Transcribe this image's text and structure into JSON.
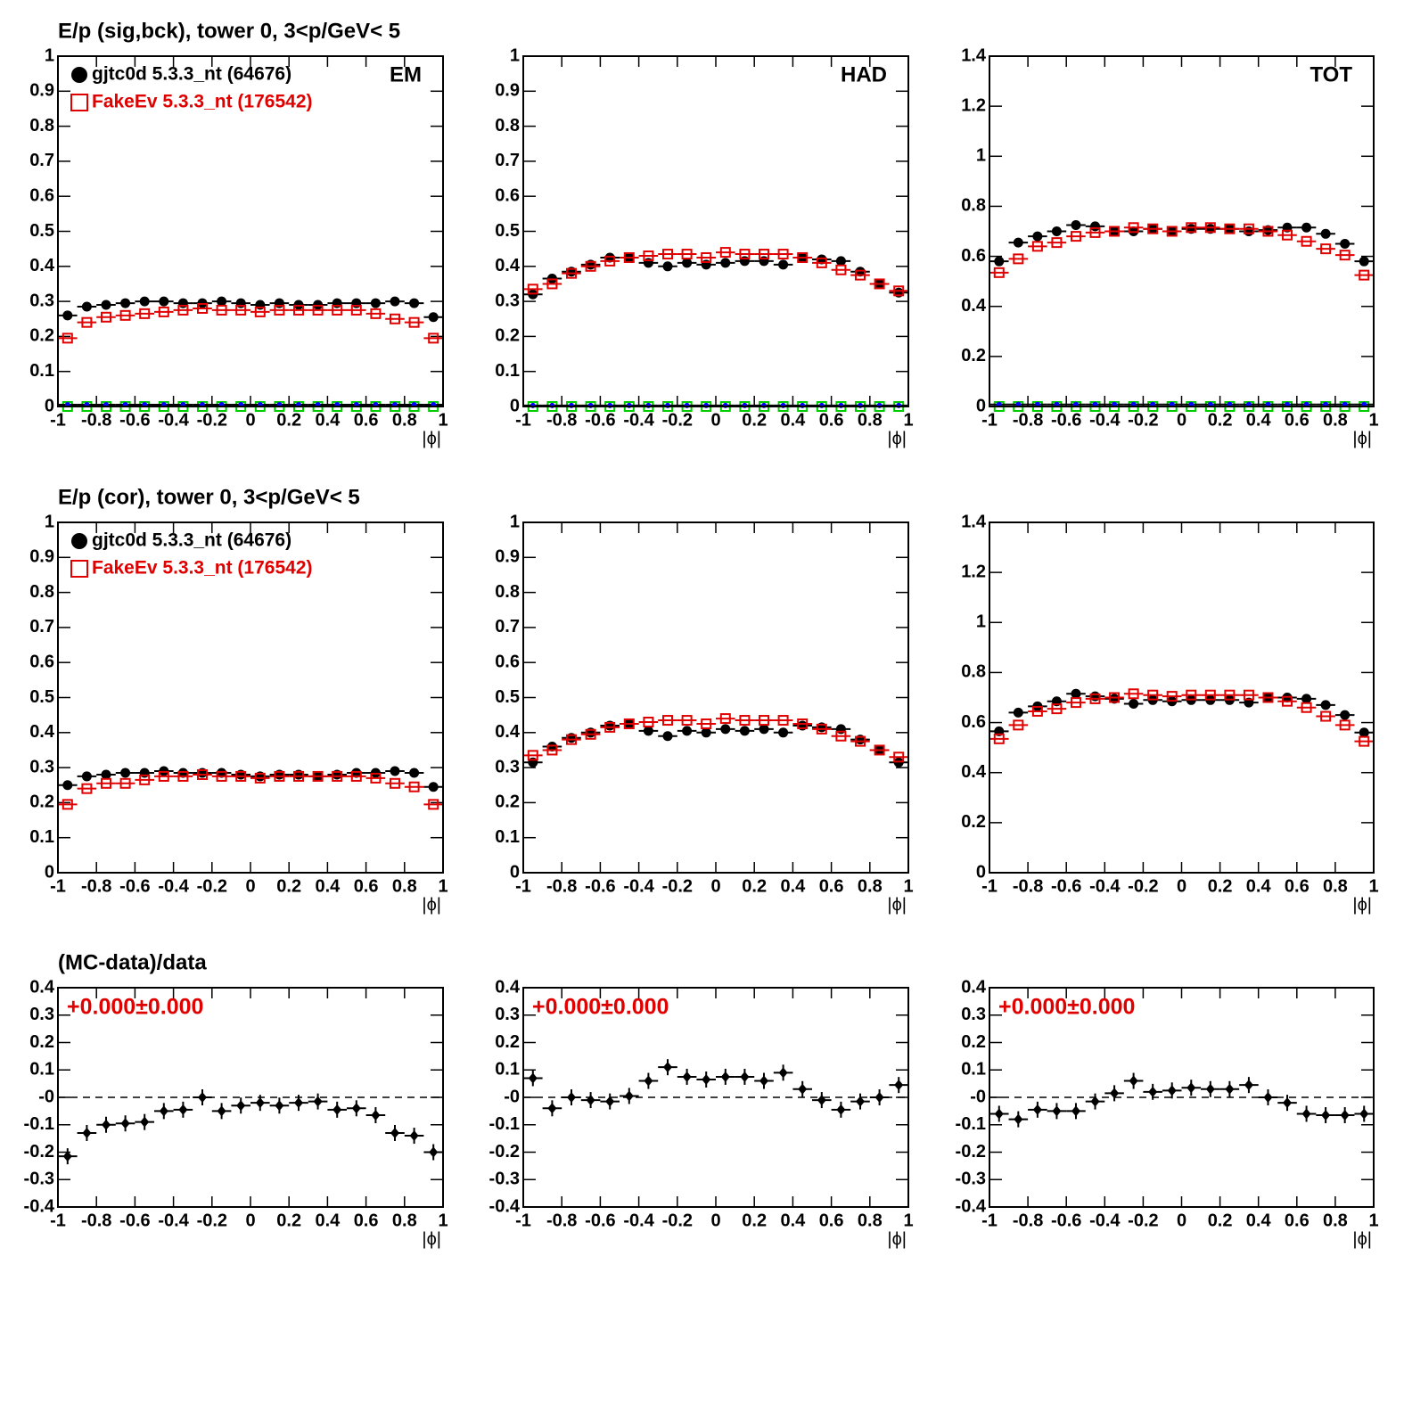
{
  "chart_data": [
    {
      "type": "scatter",
      "title": "E/p (sig,bck), tower 0,  3<p/GeV< 5",
      "label": "EM",
      "legend": "top-left",
      "xlabel": "|ϕ|",
      "x": [
        -0.95,
        -0.85,
        -0.75,
        -0.65,
        -0.55,
        -0.45,
        -0.35,
        -0.25,
        -0.15,
        -0.05,
        0.05,
        0.15,
        0.25,
        0.35,
        0.45,
        0.55,
        0.65,
        0.75,
        0.85,
        0.95
      ],
      "series": [
        {
          "name": "gjtc0d 5.3.3_nt (64676)",
          "color": "#000000",
          "marker": "circle",
          "values": [
            0.26,
            0.285,
            0.29,
            0.295,
            0.3,
            0.3,
            0.295,
            0.295,
            0.3,
            0.295,
            0.29,
            0.295,
            0.29,
            0.29,
            0.295,
            0.295,
            0.295,
            0.3,
            0.295,
            0.255
          ]
        },
        {
          "name": "FakeEv 5.3.3_nt (176542)",
          "color": "#e00000",
          "marker": "square-open",
          "values": [
            0.195,
            0.24,
            0.255,
            0.26,
            0.265,
            0.27,
            0.275,
            0.28,
            0.275,
            0.275,
            0.27,
            0.275,
            0.275,
            0.275,
            0.275,
            0.275,
            0.265,
            0.25,
            0.24,
            0.195
          ]
        },
        {
          "color": "#00cc00",
          "marker": "square-open",
          "values": [
            0,
            0,
            0,
            0,
            0,
            0,
            0,
            0,
            0,
            0,
            0,
            0,
            0,
            0,
            0,
            0,
            0,
            0,
            0,
            0
          ]
        },
        {
          "color": "#0000ff",
          "marker": "dot",
          "values": [
            0.005,
            0.005,
            0.005,
            0.005,
            0.005,
            0.005,
            0.005,
            0.005,
            0.005,
            0.005,
            0.005,
            0.005,
            0.005,
            0.005,
            0.005,
            0.005,
            0.005,
            0.005,
            0.005,
            0.005
          ]
        }
      ],
      "xlim": [
        -1,
        1
      ],
      "xticks": [
        -1,
        -0.8,
        -0.6,
        -0.4,
        -0.2,
        0,
        0.2,
        0.4,
        0.6,
        0.8,
        1
      ],
      "ylim": [
        0,
        1
      ],
      "yticks": [
        0,
        0.1,
        0.2,
        0.3,
        0.4,
        0.5,
        0.6,
        0.7,
        0.8,
        0.9,
        1
      ]
    },
    {
      "type": "scatter",
      "label": "HAD",
      "xlabel": "|ϕ|",
      "x": [
        -0.95,
        -0.85,
        -0.75,
        -0.65,
        -0.55,
        -0.45,
        -0.35,
        -0.25,
        -0.15,
        -0.05,
        0.05,
        0.15,
        0.25,
        0.35,
        0.45,
        0.55,
        0.65,
        0.75,
        0.85,
        0.95
      ],
      "series": [
        {
          "color": "#000000",
          "marker": "circle",
          "values": [
            0.32,
            0.365,
            0.385,
            0.405,
            0.425,
            0.425,
            0.41,
            0.4,
            0.41,
            0.405,
            0.41,
            0.415,
            0.415,
            0.405,
            0.425,
            0.42,
            0.415,
            0.385,
            0.35,
            0.325
          ]
        },
        {
          "color": "#e00000",
          "marker": "square-open",
          "values": [
            0.335,
            0.35,
            0.38,
            0.4,
            0.415,
            0.425,
            0.43,
            0.435,
            0.435,
            0.425,
            0.44,
            0.435,
            0.435,
            0.435,
            0.425,
            0.41,
            0.39,
            0.375,
            0.35,
            0.33
          ]
        },
        {
          "color": "#00cc00",
          "marker": "square-open",
          "values": [
            0,
            0,
            0,
            0,
            0,
            0,
            0,
            0,
            0,
            0,
            0,
            0,
            0,
            0,
            0,
            0,
            0,
            0,
            0,
            0
          ]
        },
        {
          "color": "#0000ff",
          "marker": "dot",
          "values": [
            0.003,
            0.003,
            0.003,
            0.003,
            0.003,
            0.003,
            0.003,
            0.003,
            0.003,
            0.003,
            0.003,
            0.003,
            0.003,
            0.003,
            0.003,
            0.003,
            0.003,
            0.003,
            0.003,
            0.003
          ]
        }
      ],
      "xlim": [
        -1,
        1
      ],
      "xticks": [
        -1,
        -0.8,
        -0.6,
        -0.4,
        -0.2,
        0,
        0.2,
        0.4,
        0.6,
        0.8,
        1
      ],
      "ylim": [
        0,
        1
      ],
      "yticks": [
        0,
        0.1,
        0.2,
        0.3,
        0.4,
        0.5,
        0.6,
        0.7,
        0.8,
        0.9,
        1
      ]
    },
    {
      "type": "scatter",
      "label": "TOT",
      "xlabel": "|ϕ|",
      "x": [
        -0.95,
        -0.85,
        -0.75,
        -0.65,
        -0.55,
        -0.45,
        -0.35,
        -0.25,
        -0.15,
        -0.05,
        0.05,
        0.15,
        0.25,
        0.35,
        0.45,
        0.55,
        0.65,
        0.75,
        0.85,
        0.95
      ],
      "series": [
        {
          "color": "#000000",
          "marker": "circle",
          "values": [
            0.58,
            0.655,
            0.68,
            0.7,
            0.725,
            0.72,
            0.7,
            0.7,
            0.71,
            0.7,
            0.71,
            0.71,
            0.71,
            0.7,
            0.705,
            0.715,
            0.715,
            0.69,
            0.65,
            0.58
          ]
        },
        {
          "color": "#e00000",
          "marker": "square-open",
          "values": [
            0.535,
            0.59,
            0.64,
            0.655,
            0.68,
            0.695,
            0.7,
            0.715,
            0.71,
            0.7,
            0.715,
            0.715,
            0.71,
            0.71,
            0.7,
            0.685,
            0.66,
            0.63,
            0.605,
            0.525
          ]
        },
        {
          "color": "#00cc00",
          "marker": "square-open",
          "values": [
            0,
            0,
            0,
            0,
            0,
            0,
            0,
            0,
            0,
            0,
            0,
            0,
            0,
            0,
            0,
            0,
            0,
            0,
            0,
            0
          ]
        },
        {
          "color": "#0000ff",
          "marker": "dot",
          "values": [
            0.008,
            0.008,
            0.008,
            0.008,
            0.008,
            0.008,
            0.008,
            0.008,
            0.008,
            0.008,
            0.008,
            0.008,
            0.008,
            0.008,
            0.008,
            0.008,
            0.008,
            0.008,
            0.008,
            0.008
          ]
        }
      ],
      "xlim": [
        -1,
        1
      ],
      "xticks": [
        -1,
        -0.8,
        -0.6,
        -0.4,
        -0.2,
        0,
        0.2,
        0.4,
        0.6,
        0.8,
        1
      ],
      "ylim": [
        0,
        1.4
      ],
      "yticks": [
        0,
        0.2,
        0.4,
        0.6,
        0.8,
        1,
        1.2,
        1.4
      ]
    },
    {
      "type": "scatter",
      "title": "E/p (cor), tower 0,  3<p/GeV< 5",
      "legend": "top-left",
      "xlabel": "|ϕ|",
      "x": [
        -0.95,
        -0.85,
        -0.75,
        -0.65,
        -0.55,
        -0.45,
        -0.35,
        -0.25,
        -0.15,
        -0.05,
        0.05,
        0.15,
        0.25,
        0.35,
        0.45,
        0.55,
        0.65,
        0.75,
        0.85,
        0.95
      ],
      "series": [
        {
          "name": "gjtc0d 5.3.3_nt (64676)",
          "color": "#000000",
          "marker": "circle",
          "values": [
            0.25,
            0.275,
            0.28,
            0.285,
            0.285,
            0.29,
            0.285,
            0.285,
            0.285,
            0.28,
            0.275,
            0.28,
            0.28,
            0.275,
            0.28,
            0.285,
            0.285,
            0.29,
            0.285,
            0.245
          ]
        },
        {
          "name": "FakeEv 5.3.3_nt (176542)",
          "color": "#e00000",
          "marker": "square-open",
          "values": [
            0.195,
            0.24,
            0.255,
            0.255,
            0.265,
            0.275,
            0.275,
            0.28,
            0.275,
            0.275,
            0.27,
            0.275,
            0.275,
            0.275,
            0.275,
            0.275,
            0.27,
            0.255,
            0.245,
            0.195
          ]
        }
      ],
      "xlim": [
        -1,
        1
      ],
      "xticks": [
        -1,
        -0.8,
        -0.6,
        -0.4,
        -0.2,
        0,
        0.2,
        0.4,
        0.6,
        0.8,
        1
      ],
      "ylim": [
        0,
        1
      ],
      "yticks": [
        0,
        0.1,
        0.2,
        0.3,
        0.4,
        0.5,
        0.6,
        0.7,
        0.8,
        0.9,
        1
      ]
    },
    {
      "type": "scatter",
      "xlabel": "|ϕ|",
      "x": [
        -0.95,
        -0.85,
        -0.75,
        -0.65,
        -0.55,
        -0.45,
        -0.35,
        -0.25,
        -0.15,
        -0.05,
        0.05,
        0.15,
        0.25,
        0.35,
        0.45,
        0.55,
        0.65,
        0.75,
        0.85,
        0.95
      ],
      "series": [
        {
          "color": "#000000",
          "marker": "circle",
          "values": [
            0.315,
            0.36,
            0.385,
            0.4,
            0.42,
            0.425,
            0.405,
            0.39,
            0.405,
            0.4,
            0.41,
            0.405,
            0.41,
            0.4,
            0.42,
            0.415,
            0.41,
            0.38,
            0.35,
            0.315
          ]
        },
        {
          "color": "#e00000",
          "marker": "square-open",
          "values": [
            0.335,
            0.35,
            0.38,
            0.395,
            0.415,
            0.425,
            0.43,
            0.435,
            0.435,
            0.425,
            0.44,
            0.435,
            0.435,
            0.435,
            0.425,
            0.41,
            0.39,
            0.375,
            0.35,
            0.33
          ]
        }
      ],
      "xlim": [
        -1,
        1
      ],
      "xticks": [
        -1,
        -0.8,
        -0.6,
        -0.4,
        -0.2,
        0,
        0.2,
        0.4,
        0.6,
        0.8,
        1
      ],
      "ylim": [
        0,
        1
      ],
      "yticks": [
        0,
        0.1,
        0.2,
        0.3,
        0.4,
        0.5,
        0.6,
        0.7,
        0.8,
        0.9,
        1
      ]
    },
    {
      "type": "scatter",
      "xlabel": "|ϕ|",
      "x": [
        -0.95,
        -0.85,
        -0.75,
        -0.65,
        -0.55,
        -0.45,
        -0.35,
        -0.25,
        -0.15,
        -0.05,
        0.05,
        0.15,
        0.25,
        0.35,
        0.45,
        0.55,
        0.65,
        0.75,
        0.85,
        0.95
      ],
      "series": [
        {
          "color": "#000000",
          "marker": "circle",
          "values": [
            0.565,
            0.64,
            0.665,
            0.685,
            0.715,
            0.705,
            0.695,
            0.675,
            0.69,
            0.685,
            0.69,
            0.69,
            0.69,
            0.68,
            0.7,
            0.7,
            0.695,
            0.67,
            0.63,
            0.56
          ]
        },
        {
          "color": "#e00000",
          "marker": "square-open",
          "values": [
            0.535,
            0.59,
            0.645,
            0.655,
            0.68,
            0.695,
            0.7,
            0.715,
            0.71,
            0.705,
            0.71,
            0.71,
            0.71,
            0.71,
            0.7,
            0.685,
            0.66,
            0.625,
            0.59,
            0.525
          ]
        }
      ],
      "xlim": [
        -1,
        1
      ],
      "xticks": [
        -1,
        -0.8,
        -0.6,
        -0.4,
        -0.2,
        0,
        0.2,
        0.4,
        0.6,
        0.8,
        1
      ],
      "ylim": [
        0,
        1.4
      ],
      "yticks": [
        0,
        0.2,
        0.4,
        0.6,
        0.8,
        1,
        1.2,
        1.4
      ]
    },
    {
      "type": "scatter",
      "title": "(MC-data)/data",
      "annotation": "+0.000±0.000",
      "annotation_color": "#e00000",
      "hline": 0,
      "xlabel": "|ϕ|",
      "x": [
        -0.95,
        -0.85,
        -0.75,
        -0.65,
        -0.55,
        -0.45,
        -0.35,
        -0.25,
        -0.15,
        -0.05,
        0.05,
        0.15,
        0.25,
        0.35,
        0.45,
        0.55,
        0.65,
        0.75,
        0.85,
        0.95
      ],
      "series": [
        {
          "color": "#000000",
          "marker": "diamond",
          "values": [
            -0.215,
            -0.13,
            -0.1,
            -0.095,
            -0.09,
            -0.05,
            -0.045,
            0,
            -0.05,
            -0.03,
            -0.02,
            -0.03,
            -0.02,
            -0.015,
            -0.045,
            -0.04,
            -0.065,
            -0.13,
            -0.14,
            -0.2
          ]
        }
      ],
      "xlim": [
        -1,
        1
      ],
      "xticks": [
        -1,
        -0.8,
        -0.6,
        -0.4,
        -0.2,
        0,
        0.2,
        0.4,
        0.6,
        0.8,
        1
      ],
      "ylim": [
        -0.4,
        0.4
      ],
      "yticks": [
        -0.4,
        -0.3,
        -0.2,
        -0.1,
        {
          "value": 0,
          "label": "-0"
        },
        0.1,
        0.2,
        0.3,
        0.4
      ]
    },
    {
      "type": "scatter",
      "annotation": "+0.000±0.000",
      "annotation_color": "#e00000",
      "hline": 0,
      "xlabel": "|ϕ|",
      "x": [
        -0.95,
        -0.85,
        -0.75,
        -0.65,
        -0.55,
        -0.45,
        -0.35,
        -0.25,
        -0.15,
        -0.05,
        0.05,
        0.15,
        0.25,
        0.35,
        0.45,
        0.55,
        0.65,
        0.75,
        0.85,
        0.95
      ],
      "series": [
        {
          "color": "#000000",
          "marker": "diamond",
          "values": [
            0.07,
            -0.04,
            0,
            -0.01,
            -0.015,
            0.005,
            0.06,
            0.11,
            0.075,
            0.065,
            0.075,
            0.075,
            0.06,
            0.09,
            0.03,
            -0.01,
            -0.045,
            -0.015,
            0,
            0.045
          ]
        }
      ],
      "xlim": [
        -1,
        1
      ],
      "xticks": [
        -1,
        -0.8,
        -0.6,
        -0.4,
        -0.2,
        0,
        0.2,
        0.4,
        0.6,
        0.8,
        1
      ],
      "ylim": [
        -0.4,
        0.4
      ],
      "yticks": [
        -0.4,
        -0.3,
        -0.2,
        -0.1,
        {
          "value": 0,
          "label": "-0"
        },
        0.1,
        0.2,
        0.3,
        0.4
      ]
    },
    {
      "type": "scatter",
      "annotation": "+0.000±0.000",
      "annotation_color": "#e00000",
      "hline": 0,
      "xlabel": "|ϕ|",
      "x": [
        -0.95,
        -0.85,
        -0.75,
        -0.65,
        -0.55,
        -0.45,
        -0.35,
        -0.25,
        -0.15,
        -0.05,
        0.05,
        0.15,
        0.25,
        0.35,
        0.45,
        0.55,
        0.65,
        0.75,
        0.85,
        0.95
      ],
      "series": [
        {
          "color": "#000000",
          "marker": "diamond",
          "values": [
            -0.06,
            -0.08,
            -0.045,
            -0.05,
            -0.05,
            -0.015,
            0.015,
            0.06,
            0.02,
            0.025,
            0.035,
            0.03,
            0.03,
            0.045,
            0,
            -0.02,
            -0.06,
            -0.065,
            -0.065,
            -0.06
          ]
        }
      ],
      "xlim": [
        -1,
        1
      ],
      "xticks": [
        -1,
        -0.8,
        -0.6,
        -0.4,
        -0.2,
        0,
        0.2,
        0.4,
        0.6,
        0.8,
        1
      ],
      "ylim": [
        -0.4,
        0.4
      ],
      "yticks": [
        -0.4,
        -0.3,
        -0.2,
        -0.1,
        {
          "value": 0,
          "label": "-0"
        },
        0.1,
        0.2,
        0.3,
        0.4
      ]
    }
  ]
}
